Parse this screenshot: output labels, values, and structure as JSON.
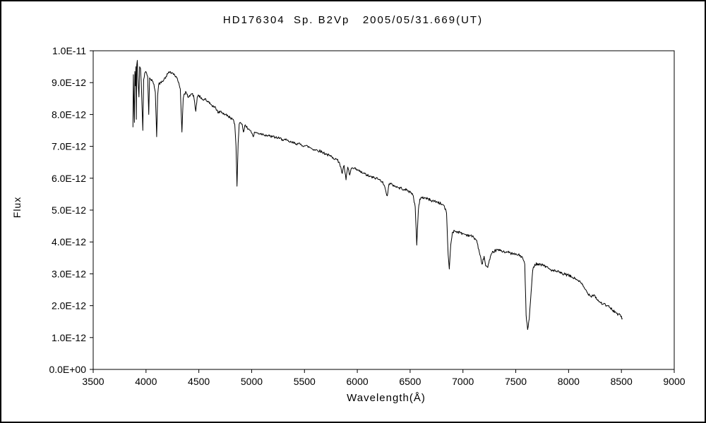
{
  "chart_data": {
    "type": "line",
    "title": "HD176304  Sp. B2Vp   2005/05/31.669(UT)",
    "xlabel": "Wavelength(Å)",
    "ylabel": "Flux",
    "xlim": [
      3500,
      9000
    ],
    "ylim": [
      0,
      1e-11
    ],
    "x_tick_step": 500,
    "x_tick_labels": [
      "3500",
      "4000",
      "4500",
      "5000",
      "5500",
      "6000",
      "6500",
      "7000",
      "7500",
      "8000",
      "8500",
      "9000"
    ],
    "y_tick_labels": [
      "0.0E+00",
      "1.0E-12",
      "2.0E-12",
      "3.0E-12",
      "4.0E-12",
      "5.0E-12",
      "6.0E-12",
      "7.0E-12",
      "8.0E-12",
      "9.0E-12",
      "1.0E-11"
    ],
    "grid": false,
    "legend_position": "none",
    "line_color": "#000000",
    "background_color": "#ffffff",
    "flux_unit_scale": 1e-12,
    "noise_amplitude": 0.045,
    "series": [
      {
        "name": "HD176304 spectrum",
        "points_unit": "flux values in units of 1E-12",
        "points": [
          [
            3876,
            7.6
          ],
          [
            3880,
            9.25
          ],
          [
            3887,
            8.1
          ],
          [
            3890,
            7.75
          ],
          [
            3894,
            9.35
          ],
          [
            3900,
            8.9
          ],
          [
            3904,
            9.5
          ],
          [
            3908,
            7.85
          ],
          [
            3912,
            9.55
          ],
          [
            3918,
            9.7
          ],
          [
            3924,
            9.1
          ],
          [
            3933,
            8.55
          ],
          [
            3940,
            9.5
          ],
          [
            3948,
            9.45
          ],
          [
            3955,
            9.0
          ],
          [
            3962,
            8.3
          ],
          [
            3970,
            7.5
          ],
          [
            3978,
            9.1
          ],
          [
            3988,
            9.3
          ],
          [
            3998,
            9.35
          ],
          [
            4005,
            9.3
          ],
          [
            4015,
            9.2
          ],
          [
            4026,
            8.0
          ],
          [
            4034,
            9.15
          ],
          [
            4045,
            9.1
          ],
          [
            4060,
            9.05
          ],
          [
            4075,
            8.95
          ],
          [
            4088,
            8.7
          ],
          [
            4101,
            7.3
          ],
          [
            4110,
            8.6
          ],
          [
            4120,
            8.95
          ],
          [
            4135,
            9.0
          ],
          [
            4150,
            9.05
          ],
          [
            4170,
            9.1
          ],
          [
            4190,
            9.2
          ],
          [
            4210,
            9.3
          ],
          [
            4230,
            9.35
          ],
          [
            4250,
            9.3
          ],
          [
            4270,
            9.25
          ],
          [
            4290,
            9.15
          ],
          [
            4310,
            9.0
          ],
          [
            4325,
            8.8
          ],
          [
            4340,
            7.45
          ],
          [
            4352,
            8.5
          ],
          [
            4365,
            8.65
          ],
          [
            4380,
            8.7
          ],
          [
            4395,
            8.55
          ],
          [
            4410,
            8.6
          ],
          [
            4430,
            8.65
          ],
          [
            4450,
            8.6
          ],
          [
            4471,
            8.1
          ],
          [
            4485,
            8.55
          ],
          [
            4500,
            8.6
          ],
          [
            4520,
            8.5
          ],
          [
            4542,
            8.45
          ],
          [
            4560,
            8.5
          ],
          [
            4580,
            8.4
          ],
          [
            4600,
            8.35
          ],
          [
            4620,
            8.3
          ],
          [
            4640,
            8.25
          ],
          [
            4660,
            8.2
          ],
          [
            4686,
            8.05
          ],
          [
            4705,
            8.1
          ],
          [
            4725,
            8.05
          ],
          [
            4750,
            8.0
          ],
          [
            4775,
            7.95
          ],
          [
            4800,
            7.9
          ],
          [
            4820,
            7.85
          ],
          [
            4840,
            7.7
          ],
          [
            4852,
            7.0
          ],
          [
            4861,
            5.75
          ],
          [
            4872,
            7.1
          ],
          [
            4882,
            7.7
          ],
          [
            4895,
            7.75
          ],
          [
            4910,
            7.7
          ],
          [
            4922,
            7.45
          ],
          [
            4935,
            7.65
          ],
          [
            4950,
            7.6
          ],
          [
            4970,
            7.55
          ],
          [
            4990,
            7.5
          ],
          [
            5016,
            7.3
          ],
          [
            5030,
            7.45
          ],
          [
            5050,
            7.42
          ],
          [
            5080,
            7.4
          ],
          [
            5110,
            7.38
          ],
          [
            5140,
            7.35
          ],
          [
            5170,
            7.32
          ],
          [
            5200,
            7.3
          ],
          [
            5230,
            7.28
          ],
          [
            5260,
            7.25
          ],
          [
            5290,
            7.22
          ],
          [
            5320,
            7.2
          ],
          [
            5350,
            7.15
          ],
          [
            5380,
            7.12
          ],
          [
            5410,
            7.1
          ],
          [
            5440,
            7.08
          ],
          [
            5470,
            7.05
          ],
          [
            5500,
            7.02
          ],
          [
            5530,
            7.0
          ],
          [
            5560,
            6.95
          ],
          [
            5590,
            6.9
          ],
          [
            5620,
            6.88
          ],
          [
            5650,
            6.85
          ],
          [
            5680,
            6.8
          ],
          [
            5710,
            6.75
          ],
          [
            5740,
            6.7
          ],
          [
            5770,
            6.65
          ],
          [
            5800,
            6.6
          ],
          [
            5830,
            6.5
          ],
          [
            5858,
            6.15
          ],
          [
            5875,
            6.4
          ],
          [
            5893,
            5.95
          ],
          [
            5910,
            6.35
          ],
          [
            5928,
            6.1
          ],
          [
            5945,
            6.32
          ],
          [
            5965,
            6.3
          ],
          [
            5985,
            6.28
          ],
          [
            6005,
            6.25
          ],
          [
            6030,
            6.2
          ],
          [
            6060,
            6.15
          ],
          [
            6090,
            6.1
          ],
          [
            6120,
            6.05
          ],
          [
            6150,
            6.02
          ],
          [
            6180,
            6.0
          ],
          [
            6210,
            5.95
          ],
          [
            6240,
            5.9
          ],
          [
            6270,
            5.6
          ],
          [
            6284,
            5.45
          ],
          [
            6300,
            5.82
          ],
          [
            6330,
            5.8
          ],
          [
            6360,
            5.75
          ],
          [
            6390,
            5.7
          ],
          [
            6420,
            5.68
          ],
          [
            6450,
            5.65
          ],
          [
            6480,
            5.6
          ],
          [
            6510,
            5.55
          ],
          [
            6530,
            5.45
          ],
          [
            6548,
            5.1
          ],
          [
            6563,
            3.9
          ],
          [
            6578,
            5.0
          ],
          [
            6592,
            5.35
          ],
          [
            6610,
            5.4
          ],
          [
            6640,
            5.38
          ],
          [
            6670,
            5.35
          ],
          [
            6700,
            5.3
          ],
          [
            6730,
            5.28
          ],
          [
            6760,
            5.25
          ],
          [
            6790,
            5.2
          ],
          [
            6820,
            5.15
          ],
          [
            6845,
            4.9
          ],
          [
            6860,
            3.6
          ],
          [
            6871,
            3.15
          ],
          [
            6884,
            3.9
          ],
          [
            6900,
            4.3
          ],
          [
            6920,
            4.35
          ],
          [
            6950,
            4.32
          ],
          [
            6980,
            4.28
          ],
          [
            7010,
            4.25
          ],
          [
            7040,
            4.22
          ],
          [
            7070,
            4.2
          ],
          [
            7100,
            4.15
          ],
          [
            7130,
            4.05
          ],
          [
            7160,
            3.6
          ],
          [
            7180,
            3.3
          ],
          [
            7200,
            3.55
          ],
          [
            7215,
            3.25
          ],
          [
            7235,
            3.2
          ],
          [
            7255,
            3.45
          ],
          [
            7275,
            3.65
          ],
          [
            7300,
            3.72
          ],
          [
            7330,
            3.75
          ],
          [
            7360,
            3.72
          ],
          [
            7390,
            3.7
          ],
          [
            7420,
            3.68
          ],
          [
            7450,
            3.65
          ],
          [
            7480,
            3.62
          ],
          [
            7510,
            3.6
          ],
          [
            7540,
            3.58
          ],
          [
            7565,
            3.5
          ],
          [
            7585,
            3.3
          ],
          [
            7598,
            1.7
          ],
          [
            7612,
            1.25
          ],
          [
            7628,
            1.6
          ],
          [
            7645,
            2.4
          ],
          [
            7660,
            3.1
          ],
          [
            7680,
            3.3
          ],
          [
            7705,
            3.32
          ],
          [
            7730,
            3.3
          ],
          [
            7760,
            3.28
          ],
          [
            7790,
            3.22
          ],
          [
            7820,
            3.15
          ],
          [
            7850,
            3.1
          ],
          [
            7880,
            3.08
          ],
          [
            7910,
            3.05
          ],
          [
            7940,
            3.0
          ],
          [
            7970,
            2.98
          ],
          [
            8000,
            2.95
          ],
          [
            8030,
            2.9
          ],
          [
            8060,
            2.85
          ],
          [
            8090,
            2.8
          ],
          [
            8120,
            2.7
          ],
          [
            8150,
            2.55
          ],
          [
            8180,
            2.4
          ],
          [
            8210,
            2.3
          ],
          [
            8240,
            2.35
          ],
          [
            8270,
            2.2
          ],
          [
            8300,
            2.1
          ],
          [
            8330,
            2.05
          ],
          [
            8360,
            2.0
          ],
          [
            8390,
            1.95
          ],
          [
            8420,
            1.85
          ],
          [
            8445,
            1.8
          ],
          [
            8465,
            1.7
          ],
          [
            8480,
            1.75
          ],
          [
            8495,
            1.65
          ],
          [
            8510,
            1.6
          ]
        ]
      }
    ]
  }
}
